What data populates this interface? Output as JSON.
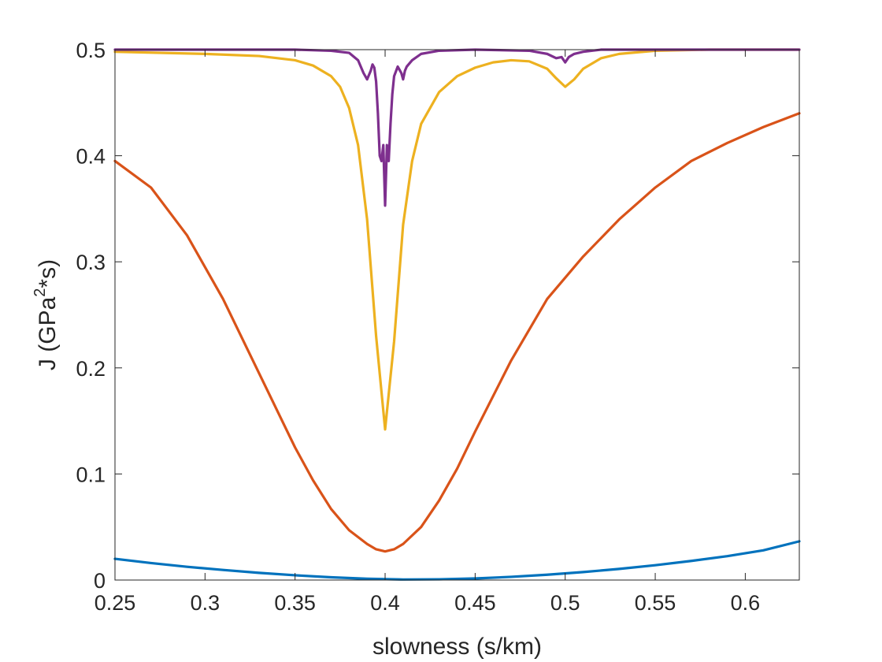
{
  "chart_data": {
    "type": "line",
    "title": "",
    "xlabel": "slowness (s/km)",
    "ylabel_main": "J (GPa",
    "ylabel_sup": "2",
    "ylabel_tail": "*s)",
    "xlim": [
      0.25,
      0.63
    ],
    "ylim": [
      0,
      0.5
    ],
    "xticks": [
      0.25,
      0.3,
      0.35,
      0.4,
      0.45,
      0.5,
      0.55,
      0.6
    ],
    "xtick_labels": [
      "0.25",
      "0.3",
      "0.35",
      "0.4",
      "0.45",
      "0.5",
      "0.55",
      "0.6"
    ],
    "yticks": [
      0,
      0.1,
      0.2,
      0.3,
      0.4,
      0.5
    ],
    "ytick_labels": [
      "0",
      "0.1",
      "0.2",
      "0.3",
      "0.4",
      "0.5"
    ],
    "grid": false,
    "legend": "none",
    "series": [
      {
        "color": "#0072BD",
        "x": [
          0.25,
          0.27,
          0.29,
          0.31,
          0.33,
          0.35,
          0.37,
          0.39,
          0.41,
          0.43,
          0.45,
          0.47,
          0.49,
          0.51,
          0.53,
          0.55,
          0.57,
          0.59,
          0.61,
          0.63
        ],
        "y": [
          0.02,
          0.016,
          0.0125,
          0.0095,
          0.0068,
          0.0045,
          0.0026,
          0.0012,
          0.0005,
          0.0007,
          0.0015,
          0.003,
          0.005,
          0.0075,
          0.0105,
          0.014,
          0.018,
          0.0225,
          0.028,
          0.0365
        ]
      },
      {
        "color": "#D95319",
        "x": [
          0.25,
          0.27,
          0.29,
          0.31,
          0.33,
          0.34,
          0.35,
          0.36,
          0.37,
          0.38,
          0.39,
          0.395,
          0.4,
          0.405,
          0.41,
          0.42,
          0.43,
          0.44,
          0.45,
          0.47,
          0.49,
          0.51,
          0.53,
          0.55,
          0.57,
          0.59,
          0.61,
          0.63
        ],
        "y": [
          0.395,
          0.37,
          0.325,
          0.265,
          0.195,
          0.16,
          0.125,
          0.094,
          0.067,
          0.047,
          0.034,
          0.029,
          0.027,
          0.029,
          0.034,
          0.05,
          0.075,
          0.105,
          0.14,
          0.207,
          0.265,
          0.305,
          0.34,
          0.37,
          0.395,
          0.412,
          0.427,
          0.44
        ]
      },
      {
        "color": "#EDB120",
        "x": [
          0.25,
          0.3,
          0.33,
          0.35,
          0.36,
          0.37,
          0.375,
          0.38,
          0.385,
          0.39,
          0.395,
          0.4,
          0.405,
          0.41,
          0.415,
          0.42,
          0.43,
          0.44,
          0.45,
          0.46,
          0.47,
          0.48,
          0.49,
          0.495,
          0.5,
          0.505,
          0.51,
          0.52,
          0.53,
          0.55,
          0.58,
          0.63
        ],
        "y": [
          0.498,
          0.496,
          0.494,
          0.49,
          0.485,
          0.475,
          0.465,
          0.445,
          0.41,
          0.34,
          0.23,
          0.142,
          0.225,
          0.335,
          0.395,
          0.43,
          0.46,
          0.475,
          0.483,
          0.488,
          0.49,
          0.489,
          0.482,
          0.473,
          0.465,
          0.472,
          0.482,
          0.492,
          0.496,
          0.499,
          0.5,
          0.5
        ]
      },
      {
        "color": "#7E2F8E",
        "x": [
          0.25,
          0.35,
          0.37,
          0.38,
          0.385,
          0.388,
          0.39,
          0.392,
          0.393,
          0.394,
          0.395,
          0.396,
          0.397,
          0.398,
          0.399,
          0.4,
          0.401,
          0.402,
          0.403,
          0.404,
          0.405,
          0.407,
          0.409,
          0.41,
          0.411,
          0.412,
          0.413,
          0.415,
          0.42,
          0.43,
          0.45,
          0.48,
          0.49,
          0.495,
          0.498,
          0.5,
          0.502,
          0.505,
          0.51,
          0.52,
          0.55,
          0.63
        ],
        "y": [
          0.5,
          0.5,
          0.499,
          0.497,
          0.49,
          0.478,
          0.472,
          0.48,
          0.486,
          0.483,
          0.47,
          0.44,
          0.4,
          0.395,
          0.41,
          0.353,
          0.41,
          0.395,
          0.43,
          0.458,
          0.475,
          0.484,
          0.478,
          0.472,
          0.48,
          0.484,
          0.486,
          0.49,
          0.496,
          0.499,
          0.5,
          0.499,
          0.496,
          0.492,
          0.493,
          0.488,
          0.493,
          0.496,
          0.498,
          0.5,
          0.5,
          0.5
        ]
      }
    ]
  }
}
